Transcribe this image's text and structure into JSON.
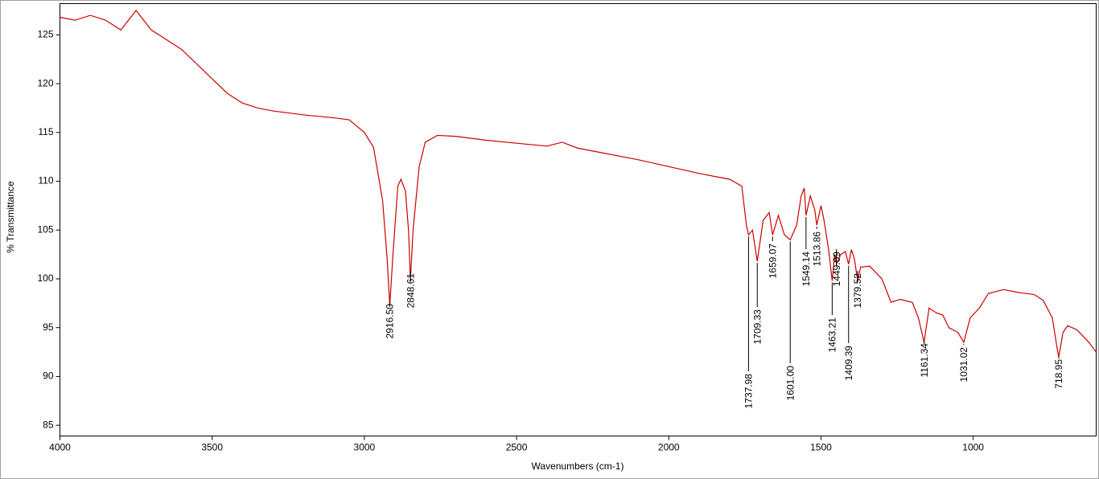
{
  "chart_data": {
    "type": "line",
    "xlabel": "Wavenumbers (cm-1)",
    "ylabel": "% Transmittance",
    "color": "#cc0000",
    "xlim": [
      4000,
      596
    ],
    "ylim": [
      83.9,
      128.2
    ],
    "xticks": [
      4000,
      3500,
      3000,
      2500,
      2000,
      1500,
      1000
    ],
    "yticks": [
      85,
      90,
      95,
      100,
      105,
      110,
      115,
      120,
      125
    ],
    "x": [
      4000,
      3950,
      3900,
      3850,
      3800,
      3750,
      3700,
      3650,
      3600,
      3550,
      3500,
      3450,
      3400,
      3350,
      3300,
      3200,
      3100,
      3050,
      3000,
      2970,
      2940,
      2925,
      2916.5,
      2905,
      2890,
      2880,
      2865,
      2855,
      2848.61,
      2840,
      2820,
      2800,
      2760,
      2700,
      2600,
      2500,
      2400,
      2350,
      2300,
      2200,
      2100,
      2000,
      1900,
      1800,
      1760,
      1745,
      1737.98,
      1725,
      1709.33,
      1690,
      1670,
      1659.07,
      1640,
      1620,
      1601,
      1580,
      1565,
      1555,
      1549.14,
      1535,
      1520,
      1513.86,
      1500,
      1490,
      1475,
      1463.21,
      1455,
      1449.09,
      1435,
      1420,
      1409.39,
      1400,
      1390,
      1379.52,
      1370,
      1340,
      1300,
      1270,
      1240,
      1200,
      1180,
      1161.34,
      1145,
      1120,
      1100,
      1080,
      1050,
      1031.02,
      1010,
      980,
      950,
      900,
      850,
      800,
      770,
      740,
      725,
      718.95,
      705,
      690,
      660,
      620,
      596
    ],
    "values": [
      126.8,
      126.5,
      127,
      126.5,
      125.5,
      127.5,
      125.5,
      124.5,
      123.5,
      122,
      120.5,
      119,
      118,
      117.5,
      117.2,
      116.8,
      116.5,
      116.3,
      115,
      113.5,
      108,
      102,
      97.3,
      103,
      109.5,
      110.2,
      109,
      105,
      99.9,
      105,
      111.5,
      114,
      114.7,
      114.6,
      114.2,
      113.9,
      113.6,
      114,
      113.4,
      112.8,
      112.2,
      111.5,
      110.8,
      110.2,
      109.5,
      105.5,
      104.5,
      105,
      101.8,
      106,
      106.8,
      104.5,
      106.5,
      104.5,
      104,
      105.5,
      108.5,
      109.3,
      106.5,
      108.5,
      107,
      105.5,
      107.5,
      106,
      103,
      99.8,
      102.5,
      101.5,
      102.5,
      102.8,
      101.5,
      103,
      102,
      99.8,
      101.2,
      101.3,
      100,
      97.6,
      97.9,
      97.6,
      96,
      93.5,
      97,
      96.5,
      96.3,
      95,
      94.5,
      93.5,
      96,
      97,
      98.5,
      98.9,
      98.6,
      98.4,
      97.8,
      96,
      93,
      92,
      94.5,
      95.2,
      94.8,
      93.5,
      92.5
    ],
    "peaks": {
      "x": [
        2916.5,
        2848.61,
        1737.98,
        1709.33,
        1659.07,
        1601,
        1549.14,
        1513.86,
        1463.21,
        1449.09,
        1409.39,
        1379.52,
        1161.34,
        1031.02,
        718.95
      ],
      "values": [
        97.3,
        99.9,
        104.5,
        101.8,
        104.5,
        104,
        106.5,
        105.5,
        99.8,
        101.5,
        101.5,
        99.8,
        93.5,
        93.5,
        92
      ],
      "value_labels": [
        "2916.50",
        "2848.61",
        "1737.98",
        "1709.33",
        "1659.07",
        "1601.00",
        "1549.14",
        "1513.86",
        "1463.21",
        "1449.09",
        "1409.39",
        "1379.52",
        "1161.34",
        "1031.02",
        "718.95"
      ]
    }
  }
}
